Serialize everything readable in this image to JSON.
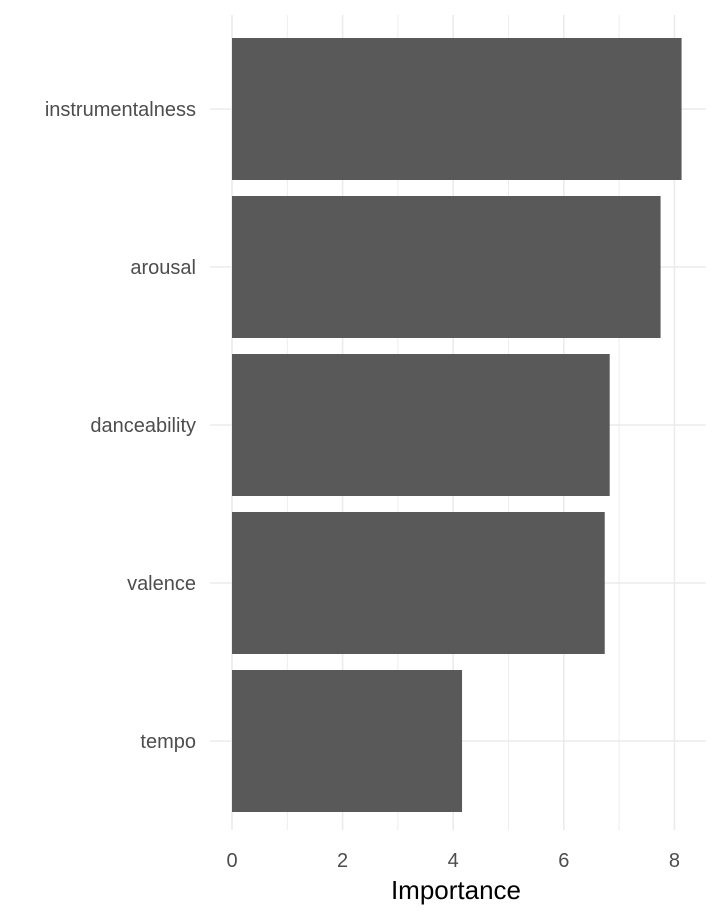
{
  "chart_data": {
    "type": "bar",
    "orientation": "horizontal",
    "categories": [
      "instrumentalness",
      "arousal",
      "danceability",
      "valence",
      "tempo"
    ],
    "values": [
      8.13,
      7.75,
      6.83,
      6.74,
      4.16
    ],
    "title": "",
    "xlabel": "Importance",
    "ylabel": "",
    "xlim": [
      0,
      8.5
    ],
    "xticks": [
      0,
      2,
      4,
      6,
      8
    ],
    "grid": true,
    "colors": {
      "bar": "#595959",
      "grid": "#ebebeb",
      "background": "#ffffff"
    }
  }
}
